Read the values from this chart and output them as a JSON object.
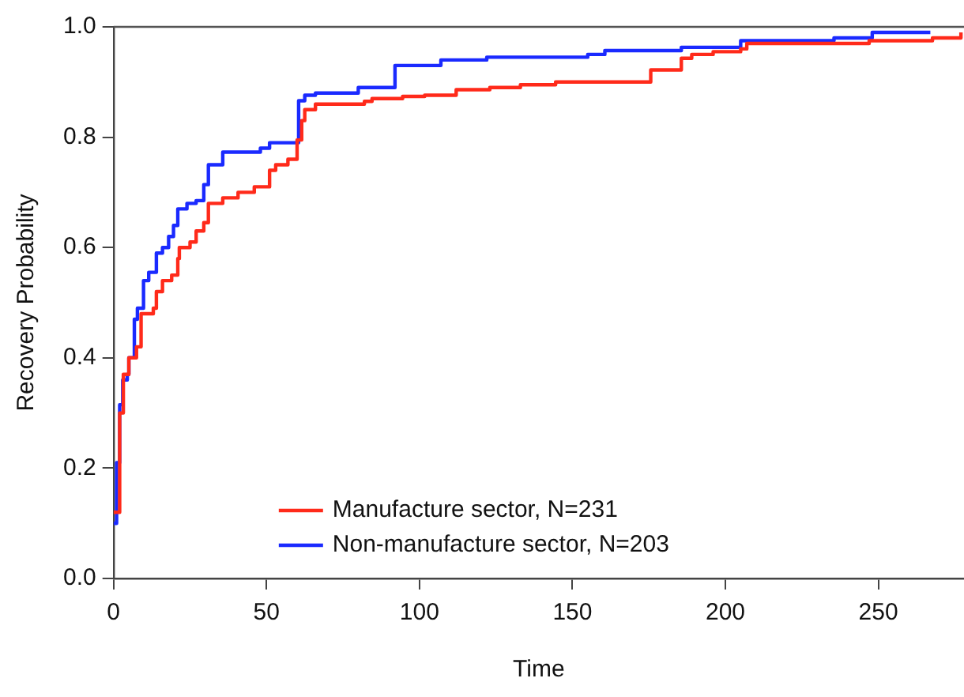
{
  "chart_data": {
    "type": "step",
    "xlabel": "Time",
    "ylabel": "Recovery Probability",
    "xlim": [
      0,
      278
    ],
    "xticks": [
      0,
      50,
      100,
      150,
      200,
      250
    ],
    "ylim": [
      0,
      1
    ],
    "yticks": [
      {
        "value": 0,
        "label": "0.0"
      },
      {
        "value": 0.2,
        "label": "0.2"
      },
      {
        "value": 0.4,
        "label": "0.4"
      },
      {
        "value": 0.6,
        "label": "0.6"
      },
      {
        "value": 0.8,
        "label": "0.8"
      },
      {
        "value": 1,
        "label": "1.0"
      }
    ],
    "grid": false,
    "legend": "bottom",
    "marker": "none",
    "line_style": "solid",
    "series": [
      {
        "name": "Manufacture sector, N=231",
        "color": "#ff2a1a",
        "x": [
          0,
          2,
          3.2,
          5,
          7.5,
          9,
          13,
          14,
          16,
          19,
          21,
          21.5,
          25,
          27,
          29.5,
          31,
          35.7,
          40.7,
          46,
          51,
          53,
          57,
          60,
          61.5,
          62.5,
          66,
          82,
          84.5,
          94.5,
          101.7,
          112,
          123,
          133,
          144.5,
          175.6,
          185.6,
          189,
          196,
          205,
          207,
          247,
          267.7,
          277
        ],
        "values": [
          0.12,
          0.3,
          0.37,
          0.4,
          0.42,
          0.48,
          0.49,
          0.52,
          0.54,
          0.55,
          0.58,
          0.6,
          0.61,
          0.63,
          0.645,
          0.68,
          0.69,
          0.7,
          0.71,
          0.74,
          0.75,
          0.76,
          0.795,
          0.83,
          0.85,
          0.86,
          0.865,
          0.87,
          0.874,
          0.876,
          0.886,
          0.89,
          0.895,
          0.9,
          0.922,
          0.943,
          0.95,
          0.955,
          0.96,
          0.97,
          0.975,
          0.98,
          0.99
        ]
      },
      {
        "name": "Non-manufacture sector, N=203",
        "color": "#1a2aff",
        "x": [
          0,
          1,
          2,
          3,
          4.5,
          5,
          6.8,
          7.8,
          9.8,
          11.5,
          14,
          16,
          18,
          19.6,
          21,
          24,
          27,
          29.5,
          31,
          35.7,
          48,
          51,
          60.5,
          62.5,
          66,
          80,
          92,
          107,
          122,
          155,
          160.6,
          185.6,
          205,
          235.5,
          248,
          267
        ],
        "values": [
          0.1,
          0.21,
          0.315,
          0.36,
          0.37,
          0.4,
          0.47,
          0.49,
          0.54,
          0.555,
          0.59,
          0.6,
          0.62,
          0.64,
          0.67,
          0.68,
          0.685,
          0.714,
          0.75,
          0.773,
          0.78,
          0.79,
          0.866,
          0.876,
          0.88,
          0.89,
          0.93,
          0.94,
          0.945,
          0.95,
          0.957,
          0.963,
          0.975,
          0.98,
          0.99,
          0.99
        ]
      }
    ]
  }
}
